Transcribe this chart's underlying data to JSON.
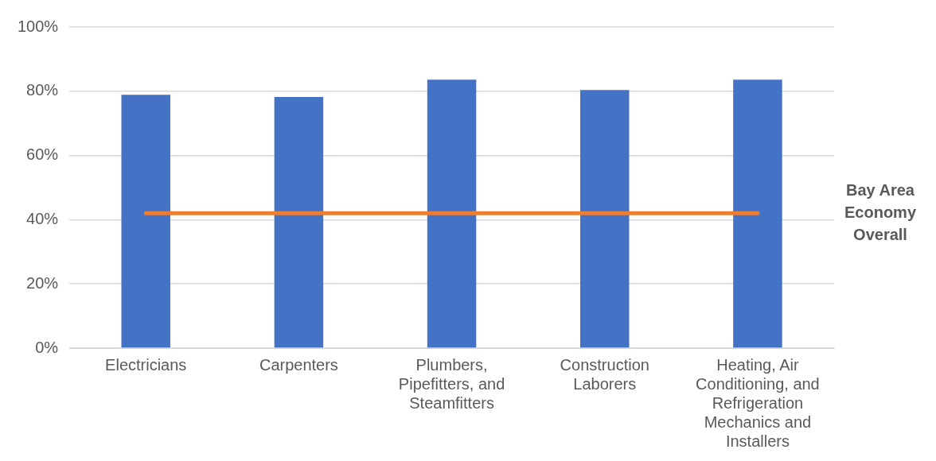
{
  "chart_data": {
    "type": "bar",
    "categories": [
      "Electricians",
      "Carpenters",
      "Plumbers, Pipefitters, and Steamfitters",
      "Construction Laborers",
      "Heating, Air Conditioning, and Refrigeration Mechanics and Installers"
    ],
    "series": [
      {
        "color": "#4472c4",
        "values": [
          78.9,
          78.2,
          83.6,
          80.4,
          83.6
        ]
      },
      {
        "type": "line",
        "name": "Bay Area Economy Overall",
        "color": "#ed7d31",
        "values": [
          42,
          42,
          42,
          42,
          42
        ]
      }
    ],
    "ylim": [
      0,
      100
    ],
    "yticks": [
      {
        "value": 0,
        "label": "0%"
      },
      {
        "value": 20,
        "label": "20%"
      },
      {
        "value": 40,
        "label": "40%"
      },
      {
        "value": 60,
        "label": "60%"
      },
      {
        "value": 80,
        "label": "80%"
      },
      {
        "value": 100,
        "label": "100%"
      }
    ],
    "grid": "y",
    "legend": false,
    "marker": "none",
    "line_style": "solid"
  }
}
